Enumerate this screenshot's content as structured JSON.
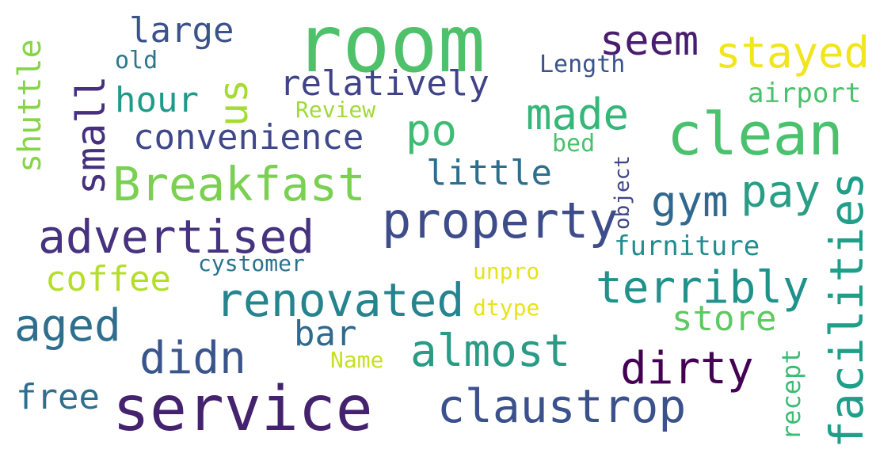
{
  "words": [
    {
      "text": "room",
      "color": "#4fc16b"
    },
    {
      "text": "service",
      "color": "#44226d"
    },
    {
      "text": "clean",
      "color": "#4ac16d"
    },
    {
      "text": "facilities",
      "color": "#1f9e89"
    },
    {
      "text": "property",
      "color": "#3e4c8a"
    },
    {
      "text": "Breakfast",
      "color": "#7ad151"
    },
    {
      "text": "advertised",
      "color": "#46327e"
    },
    {
      "text": "renovated",
      "color": "#25848e"
    },
    {
      "text": "claustrop",
      "color": "#3b518b"
    },
    {
      "text": "stayed",
      "color": "#f1e51d"
    },
    {
      "text": "seem",
      "color": "#481d6f"
    },
    {
      "text": "terribly",
      "color": "#21918c"
    },
    {
      "text": "almost",
      "color": "#2a9b85"
    },
    {
      "text": "dirty",
      "color": "#440154"
    },
    {
      "text": "didn",
      "color": "#3a548c"
    },
    {
      "text": "aged",
      "color": "#2e6f8e"
    },
    {
      "text": "made",
      "color": "#35b779"
    },
    {
      "text": "po",
      "color": "#3fbc73"
    },
    {
      "text": "gym",
      "color": "#31688e"
    },
    {
      "text": "pay",
      "color": "#2a9d85"
    },
    {
      "text": "relatively",
      "color": "#404387"
    },
    {
      "text": "convenience",
      "color": "#3f4889"
    },
    {
      "text": "little",
      "color": "#2d6e8e"
    },
    {
      "text": "us",
      "color": "#a5db36"
    },
    {
      "text": "small",
      "color": "#46307e"
    },
    {
      "text": "large",
      "color": "#3b528b"
    },
    {
      "text": "hour",
      "color": "#1f9a8a"
    },
    {
      "text": "coffee",
      "color": "#b5de2b"
    },
    {
      "text": "free",
      "color": "#2e6e8e"
    },
    {
      "text": "store",
      "color": "#5ec962"
    },
    {
      "text": "bar",
      "color": "#30698e"
    },
    {
      "text": "shuttle",
      "color": "#86d549"
    },
    {
      "text": "airport",
      "color": "#4ac16d"
    },
    {
      "text": "furniture",
      "color": "#228c8d"
    },
    {
      "text": "cystomer",
      "color": "#2c728e"
    },
    {
      "text": "Length",
      "color": "#3b528b"
    },
    {
      "text": "old",
      "color": "#2a788e"
    },
    {
      "text": "bed",
      "color": "#4ac16d"
    },
    {
      "text": "Review",
      "color": "#a0da39"
    },
    {
      "text": "object",
      "color": "#404688"
    },
    {
      "text": "recept",
      "color": "#3dbc74"
    },
    {
      "text": "Name",
      "color": "#c8e020"
    },
    {
      "text": "unpro",
      "color": "#e5e419"
    },
    {
      "text": "dtype",
      "color": "#e7e419"
    }
  ]
}
